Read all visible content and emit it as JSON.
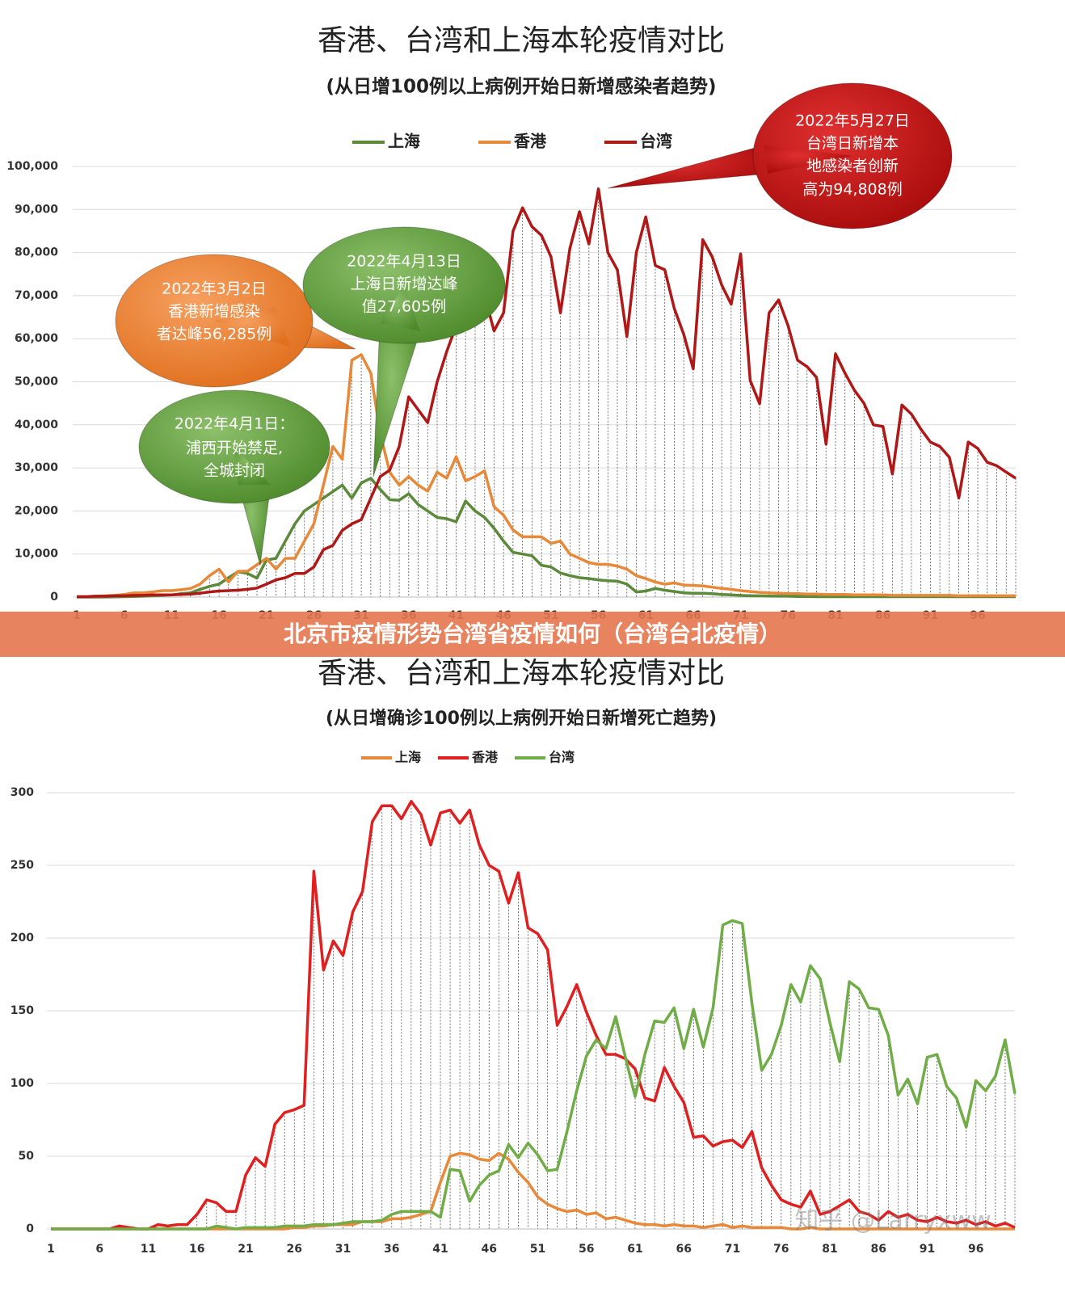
{
  "chart_data": [
    {
      "type": "line",
      "title": "香港、台湾和上海本轮疫情对比",
      "subtitle": "(从日增100例以上病例开始日新增感染者趋势)",
      "x": [
        1,
        2,
        3,
        4,
        5,
        6,
        7,
        8,
        9,
        10,
        11,
        12,
        13,
        14,
        15,
        16,
        17,
        18,
        19,
        20,
        21,
        22,
        23,
        24,
        25,
        26,
        27,
        28,
        29,
        30,
        31,
        32,
        33,
        34,
        35,
        36,
        37,
        38,
        39,
        40,
        41,
        42,
        43,
        44,
        45,
        46,
        47,
        48,
        49,
        50,
        51,
        52,
        53,
        54,
        55,
        56,
        57,
        58,
        59,
        60,
        61,
        62,
        63,
        64,
        65,
        66,
        67,
        68,
        69,
        70,
        71,
        72,
        73,
        74,
        75,
        76,
        77,
        78,
        79,
        80,
        81,
        82,
        83,
        84,
        85,
        86,
        87,
        88,
        89,
        90,
        91,
        92,
        93,
        94,
        95,
        96,
        97,
        98,
        99,
        100
      ],
      "xlim": [
        1,
        100
      ],
      "xticks": [
        1,
        6,
        11,
        16,
        21,
        26,
        31,
        36,
        41,
        46,
        51,
        56,
        61,
        66,
        71,
        76,
        81,
        86,
        91,
        96
      ],
      "ylim": [
        0,
        100000
      ],
      "yticks": [
        0,
        {
          "value": 10000,
          "label": "10,000"
        },
        {
          "value": 20000,
          "label": "20,000"
        },
        {
          "value": 30000,
          "label": "30,000"
        },
        {
          "value": 40000,
          "label": "40,000"
        },
        {
          "value": 50000,
          "label": "50,000"
        },
        {
          "value": 60000,
          "label": "60,000"
        },
        {
          "value": 70000,
          "label": "70,000"
        },
        {
          "value": 80000,
          "label": "80,000"
        },
        {
          "value": 90000,
          "label": "90,000"
        },
        {
          "value": 100000,
          "label": "100,000"
        }
      ],
      "grid": true,
      "legend": "top",
      "series": [
        {
          "name": "上海",
          "color": "#5b8a3a",
          "values": [
            0,
            0,
            0,
            10,
            50,
            100,
            150,
            200,
            300,
            400,
            500,
            800,
            1000,
            1800,
            2500,
            3000,
            4500,
            5900,
            5500,
            4400,
            8600,
            9000,
            13000,
            17000,
            20000,
            21500,
            23000,
            24500,
            26000,
            23000,
            26500,
            27605,
            25000,
            22600,
            22500,
            24000,
            21500,
            20000,
            18500,
            18200,
            17500,
            22300,
            20000,
            18500,
            16000,
            13000,
            10400,
            10000,
            9600,
            7400,
            7000,
            5600,
            5000,
            4500,
            4300,
            4000,
            3800,
            3700,
            3000,
            1200,
            1400,
            2000,
            1600,
            1300,
            1000,
            900,
            900,
            800,
            600,
            500,
            400,
            300,
            300,
            250,
            200,
            200,
            150,
            150,
            100,
            100,
            100,
            100,
            100,
            100,
            100,
            100,
            100,
            100,
            100,
            100,
            100,
            100,
            100,
            100,
            100,
            100,
            100,
            100,
            100,
            100
          ]
        },
        {
          "name": "香港",
          "color": "#e8893a",
          "values": [
            100,
            100,
            200,
            300,
            400,
            600,
            1000,
            1000,
            1200,
            1500,
            1500,
            1700,
            2000,
            3000,
            5000,
            6500,
            3500,
            6000,
            6000,
            7500,
            9000,
            6500,
            9000,
            9000,
            13000,
            17000,
            26000,
            35000,
            32000,
            55000,
            56285,
            52000,
            38000,
            29000,
            26000,
            28000,
            26000,
            24600,
            29000,
            27600,
            32600,
            27000,
            28000,
            29300,
            21000,
            19000,
            15600,
            14000,
            14000,
            14000,
            12500,
            13000,
            10000,
            9000,
            8000,
            7600,
            7600,
            7200,
            6500,
            5000,
            4300,
            3500,
            3000,
            3300,
            2800,
            2700,
            2600,
            2300,
            2000,
            1800,
            1500,
            1300,
            1100,
            1000,
            900,
            800,
            800,
            700,
            700,
            600,
            600,
            600,
            500,
            500,
            500,
            500,
            400,
            400,
            400,
            400,
            400,
            400,
            400,
            300,
            300,
            300,
            300,
            300,
            300,
            300
          ]
        },
        {
          "name": "台湾",
          "color": "#b01818",
          "values": [
            100,
            100,
            200,
            200,
            300,
            300,
            400,
            400,
            500,
            500,
            500,
            600,
            700,
            900,
            1200,
            1400,
            1500,
            1600,
            1800,
            2100,
            3000,
            4000,
            4500,
            5500,
            5500,
            7000,
            11000,
            12000,
            15500,
            17000,
            18000,
            23000,
            28000,
            29500,
            35000,
            46500,
            43500,
            40500,
            50000,
            57000,
            63000,
            69000,
            65000,
            70000,
            61800,
            66000,
            85000,
            90400,
            86000,
            84000,
            79000,
            66000,
            81000,
            89500,
            82000,
            94808,
            80000,
            76000,
            60500,
            80000,
            88300,
            77000,
            76000,
            67000,
            61000,
            53000,
            83000,
            79000,
            72500,
            68000,
            79700,
            50300,
            44900,
            66000,
            69000,
            63000,
            55000,
            53500,
            51000,
            35500,
            56500,
            52000,
            48000,
            45000,
            40000,
            39600,
            28600,
            44600,
            42500,
            39000,
            36000,
            35000,
            32500,
            23000,
            36000,
            34500,
            31300,
            30500,
            29000,
            27600
          ]
        }
      ],
      "annotations": [
        {
          "lines": [
            "2022年3月2日",
            "香港新增感染",
            "者达峰56,285例"
          ]
        },
        {
          "lines": [
            "2022年4月13日",
            "上海日新增达峰",
            "值27,605例"
          ]
        },
        {
          "lines": [
            "2022年4月1日：",
            "浦西开始禁足,",
            "全城封闭"
          ]
        },
        {
          "lines": [
            "2022年5月27日",
            "台湾日新增本",
            "地感染者创新",
            "高为94,808例"
          ]
        }
      ]
    },
    {
      "type": "line",
      "title": "香港、台湾和上海本轮疫情对比",
      "subtitle": "(从日增确诊100例以上病例开始日新增死亡趋势)",
      "x": [
        1,
        2,
        3,
        4,
        5,
        6,
        7,
        8,
        9,
        10,
        11,
        12,
        13,
        14,
        15,
        16,
        17,
        18,
        19,
        20,
        21,
        22,
        23,
        24,
        25,
        26,
        27,
        28,
        29,
        30,
        31,
        32,
        33,
        34,
        35,
        36,
        37,
        38,
        39,
        40,
        41,
        42,
        43,
        44,
        45,
        46,
        47,
        48,
        49,
        50,
        51,
        52,
        53,
        54,
        55,
        56,
        57,
        58,
        59,
        60,
        61,
        62,
        63,
        64,
        65,
        66,
        67,
        68,
        69,
        70,
        71,
        72,
        73,
        74,
        75,
        76,
        77,
        78,
        79,
        80,
        81,
        82,
        83,
        84,
        85,
        86,
        87,
        88,
        89,
        90,
        91,
        92,
        93,
        94,
        95,
        96,
        97,
        98,
        99,
        100
      ],
      "xlim": [
        1,
        100
      ],
      "xticks": [
        1,
        6,
        11,
        16,
        21,
        26,
        31,
        36,
        41,
        46,
        51,
        56,
        61,
        66,
        71,
        76,
        81,
        86,
        91,
        96
      ],
      "ylim": [
        0,
        300
      ],
      "yticks": [
        0,
        50,
        100,
        150,
        200,
        250,
        300
      ],
      "grid": true,
      "legend": "top",
      "series": [
        {
          "name": "上海",
          "color": "#e8893a",
          "values": [
            0,
            0,
            0,
            0,
            0,
            0,
            0,
            0,
            0,
            0,
            0,
            0,
            0,
            0,
            0,
            0,
            0,
            0,
            0,
            0,
            0,
            0,
            0,
            0,
            0,
            1,
            1,
            2,
            2,
            3,
            3,
            3,
            5,
            5,
            5,
            7,
            7,
            8,
            10,
            12,
            32,
            50,
            52,
            51,
            48,
            47,
            52,
            48,
            39,
            32,
            22,
            17,
            14,
            12,
            13,
            10,
            11,
            7,
            8,
            6,
            4,
            3,
            3,
            2,
            3,
            2,
            2,
            1,
            2,
            3,
            1,
            2,
            1,
            1,
            1,
            1,
            0,
            0,
            1,
            0,
            0,
            0,
            0,
            0,
            0,
            0,
            0,
            0,
            0,
            0,
            0,
            0,
            0,
            0,
            0,
            0,
            0,
            0,
            0,
            0
          ]
        },
        {
          "name": "香港",
          "color": "#e02020",
          "values": [
            0,
            0,
            0,
            0,
            0,
            0,
            0,
            2,
            1,
            0,
            0,
            3,
            2,
            3,
            3,
            10,
            20,
            18,
            12,
            12,
            37,
            49,
            43,
            72,
            80,
            82,
            85,
            246,
            178,
            198,
            188,
            218,
            232,
            280,
            291,
            291,
            282,
            294,
            285,
            264,
            286,
            288,
            279,
            288,
            264,
            250,
            246,
            224,
            245,
            207,
            203,
            192,
            140,
            153,
            168,
            149,
            133,
            120,
            120,
            117,
            110,
            90,
            88,
            111,
            98,
            87,
            63,
            64,
            57,
            60,
            61,
            56,
            67,
            42,
            30,
            20,
            17,
            15,
            26,
            10,
            12,
            16,
            20,
            12,
            10,
            6,
            12,
            8,
            10,
            6,
            5,
            8,
            5,
            4,
            6,
            3,
            5,
            2,
            4,
            1
          ]
        },
        {
          "name": "台湾",
          "color": "#70ad47",
          "values": [
            0,
            0,
            0,
            0,
            0,
            0,
            0,
            0,
            0,
            0,
            0,
            0,
            0,
            0,
            0,
            0,
            0,
            2,
            1,
            0,
            1,
            1,
            1,
            1,
            2,
            2,
            2,
            3,
            3,
            3,
            4,
            5,
            5,
            5,
            6,
            10,
            12,
            12,
            12,
            12,
            8,
            41,
            40,
            19,
            30,
            37,
            40,
            58,
            49,
            59,
            51,
            40,
            41,
            67,
            95,
            119,
            130,
            124,
            146,
            118,
            91,
            120,
            143,
            142,
            152,
            124,
            151,
            125,
            152,
            209,
            212,
            210,
            155,
            109,
            120,
            140,
            168,
            156,
            181,
            172,
            142,
            115,
            170,
            165,
            152,
            151,
            133,
            92,
            103,
            86,
            118,
            120,
            98,
            90,
            70,
            102,
            95,
            105,
            130,
            93
          ]
        }
      ]
    }
  ],
  "banner": "北京市疫情形势台湾省疫情如何（台湾台北疫情）",
  "watermark": "知乎 @Larryxww"
}
